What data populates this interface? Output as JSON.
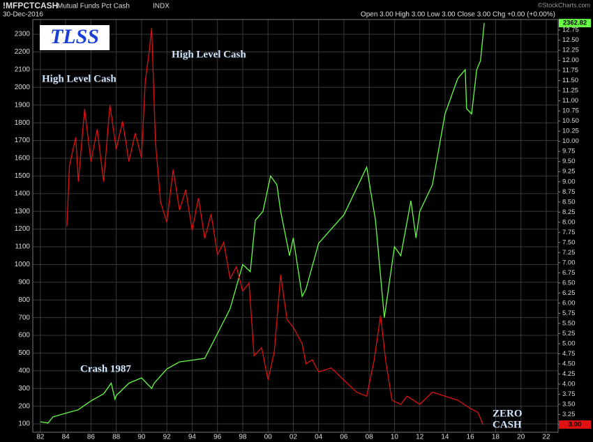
{
  "chart_data": {
    "type": "line",
    "header": {
      "symbol": "!MFPCTCASH",
      "name": "Mutual Funds Pct Cash",
      "exchange": "INDX",
      "date": "30-Dec-2016",
      "quote": "Open 3.00  High 3.00  Low 3.00  Close 3.00  Chg +0.00 (+0.00%)",
      "source": "©StockCharts.com"
    },
    "logo": "TLSS",
    "annotations": [
      "High Level Cash",
      "High Level Cash",
      "Crash 1987",
      "ZERO",
      "CASH"
    ],
    "grid": true,
    "xlim": [
      1981.4,
      2022.94
    ],
    "xticks": [
      {
        "value": 1982,
        "label": "82"
      },
      {
        "value": 1984,
        "label": "84"
      },
      {
        "value": 1986,
        "label": "86"
      },
      {
        "value": 1988,
        "label": "88"
      },
      {
        "value": 1990,
        "label": "90"
      },
      {
        "value": 1992,
        "label": "92"
      },
      {
        "value": 1994,
        "label": "94"
      },
      {
        "value": 1996,
        "label": "96"
      },
      {
        "value": 1998,
        "label": "98"
      },
      {
        "value": 2000,
        "label": "00"
      },
      {
        "value": 2002,
        "label": "02"
      },
      {
        "value": 2004,
        "label": "04"
      },
      {
        "value": 2006,
        "label": "06"
      },
      {
        "value": 2008,
        "label": "08"
      },
      {
        "value": 2010,
        "label": "10"
      },
      {
        "value": 2012,
        "label": "12"
      },
      {
        "value": 2014,
        "label": "14"
      },
      {
        "value": 2016,
        "label": "16"
      },
      {
        "value": 2018,
        "label": "18"
      },
      {
        "value": 2020,
        "label": "20"
      },
      {
        "value": 2022,
        "label": "22"
      }
    ],
    "ylim": [
      53,
      2383
    ],
    "yticks": [
      100,
      200,
      300,
      400,
      500,
      600,
      700,
      800,
      900,
      1000,
      1100,
      1200,
      1300,
      1400,
      1500,
      1600,
      1700,
      1800,
      1900,
      2000,
      2100,
      2200,
      2300
    ],
    "y2lim": [
      2.81,
      13.01
    ],
    "y2ticks": [
      {
        "value": 3,
        "label": "3.00"
      },
      3.25,
      {
        "value": 3.5,
        "label": "3.50"
      },
      3.75,
      {
        "value": 4,
        "label": "4.00"
      },
      4.25,
      {
        "value": 4.5,
        "label": "4.50"
      },
      4.75,
      {
        "value": 5,
        "label": "5.00"
      },
      5.25,
      {
        "value": 5.5,
        "label": "5.50"
      },
      5.75,
      {
        "value": 6,
        "label": "6.00"
      },
      6.25,
      {
        "value": 6.5,
        "label": "6.50"
      },
      6.75,
      {
        "value": 7,
        "label": "7.00"
      },
      7.25,
      {
        "value": 7.5,
        "label": "7.50"
      },
      7.75,
      {
        "value": 8,
        "label": "8.00"
      },
      8.25,
      {
        "value": 8.5,
        "label": "8.50"
      },
      8.75,
      {
        "value": 9,
        "label": "9.00"
      },
      9.25,
      {
        "value": 9.5,
        "label": "9.50"
      },
      9.75,
      {
        "value": 10,
        "label": "10.00"
      },
      10.25,
      {
        "value": 10.5,
        "label": "10.50"
      },
      10.75,
      {
        "value": 11,
        "label": "11.00"
      },
      11.25,
      {
        "value": 11.5,
        "label": "11.50"
      },
      11.75,
      {
        "value": 12,
        "label": "12.00"
      },
      12.25,
      {
        "value": 12.5,
        "label": "12.50"
      },
      12.75
    ],
    "series": [
      {
        "color": "#66ff44",
        "axis": "y",
        "x": [
          1982,
          1982.6,
          1983,
          1984,
          1985,
          1986,
          1987,
          1987.6,
          1987.9,
          1988,
          1989,
          1990,
          1990.8,
          1991,
          1992,
          1993,
          1994,
          1995,
          1996,
          1997,
          1998,
          1998.6,
          1999,
          1999.6,
          2000.2,
          2000.7,
          2001,
          2001.7,
          2002,
          2002.7,
          2003,
          2004,
          2005,
          2006,
          2007,
          2007.8,
          2008.5,
          2009.2,
          2010,
          2010.5,
          2011.3,
          2011.7,
          2012,
          2013,
          2014,
          2015,
          2015.6,
          2015.7,
          2016.1,
          2016.5,
          2016.8,
          2017.1
        ],
        "values": [
          112,
          105,
          140,
          160,
          180,
          230,
          270,
          330,
          240,
          260,
          330,
          360,
          300,
          330,
          410,
          450,
          460,
          470,
          610,
          750,
          1000,
          960,
          1250,
          1300,
          1500,
          1450,
          1300,
          1050,
          1150,
          820,
          860,
          1120,
          1200,
          1280,
          1430,
          1550,
          1250,
          700,
          1100,
          1050,
          1360,
          1150,
          1300,
          1450,
          1850,
          2050,
          2100,
          1880,
          1850,
          2100,
          2150,
          2362.82
        ]
      },
      {
        "color": "#dd1111",
        "axis": "y2",
        "x": [
          1984.1,
          1984.3,
          1984.8,
          1985,
          1985.5,
          1986,
          1986.5,
          1987,
          1987.5,
          1988,
          1988.5,
          1989,
          1989.5,
          1990,
          1990.3,
          1990.6,
          1990.8,
          1991.1,
          1991.5,
          1992,
          1992.5,
          1993,
          1993.5,
          1994,
          1994.5,
          1995,
          1995.5,
          1996,
          1996.5,
          1997,
          1997.5,
          1998,
          1998.5,
          1998.9,
          1999.5,
          2000,
          2000.5,
          2001,
          2001.5,
          2002,
          2002.7,
          2003,
          2003.5,
          2004,
          2005,
          2006,
          2007,
          2007.8,
          2008.4,
          2008.9,
          2009.3,
          2009.8,
          2010.5,
          2011,
          2012,
          2013,
          2014,
          2015,
          2016,
          2016.6,
          2017
        ],
        "values": [
          7.9,
          9.4,
          10.1,
          9.0,
          10.8,
          9.5,
          10.3,
          9.0,
          10.9,
          9.8,
          10.5,
          9.5,
          10.2,
          9.6,
          11.5,
          12.2,
          12.8,
          10.0,
          8.5,
          8.0,
          9.3,
          8.3,
          8.8,
          7.8,
          8.6,
          7.6,
          8.2,
          7.2,
          7.5,
          6.6,
          6.9,
          6.3,
          6.5,
          4.7,
          4.9,
          4.1,
          4.8,
          6.7,
          5.6,
          5.4,
          5.0,
          4.5,
          4.6,
          4.3,
          4.4,
          4.1,
          3.8,
          3.7,
          4.6,
          5.7,
          4.6,
          3.6,
          3.5,
          3.7,
          3.5,
          3.8,
          3.7,
          3.6,
          3.4,
          3.3,
          3
        ],
        "value_labels": [
          null,
          null,
          null,
          null,
          null,
          null,
          null,
          null,
          null,
          null,
          null,
          null,
          null,
          null,
          null,
          null,
          null,
          null,
          null,
          null,
          null,
          null,
          null,
          null,
          null,
          null,
          null,
          null,
          null,
          null,
          null,
          null,
          null,
          null,
          null,
          null,
          null,
          null,
          null,
          null,
          null,
          null,
          null,
          null,
          null,
          null,
          null,
          null,
          null,
          null,
          null,
          null,
          null,
          null,
          null,
          null,
          null,
          null,
          null,
          null,
          "3.00"
        ]
      }
    ]
  }
}
